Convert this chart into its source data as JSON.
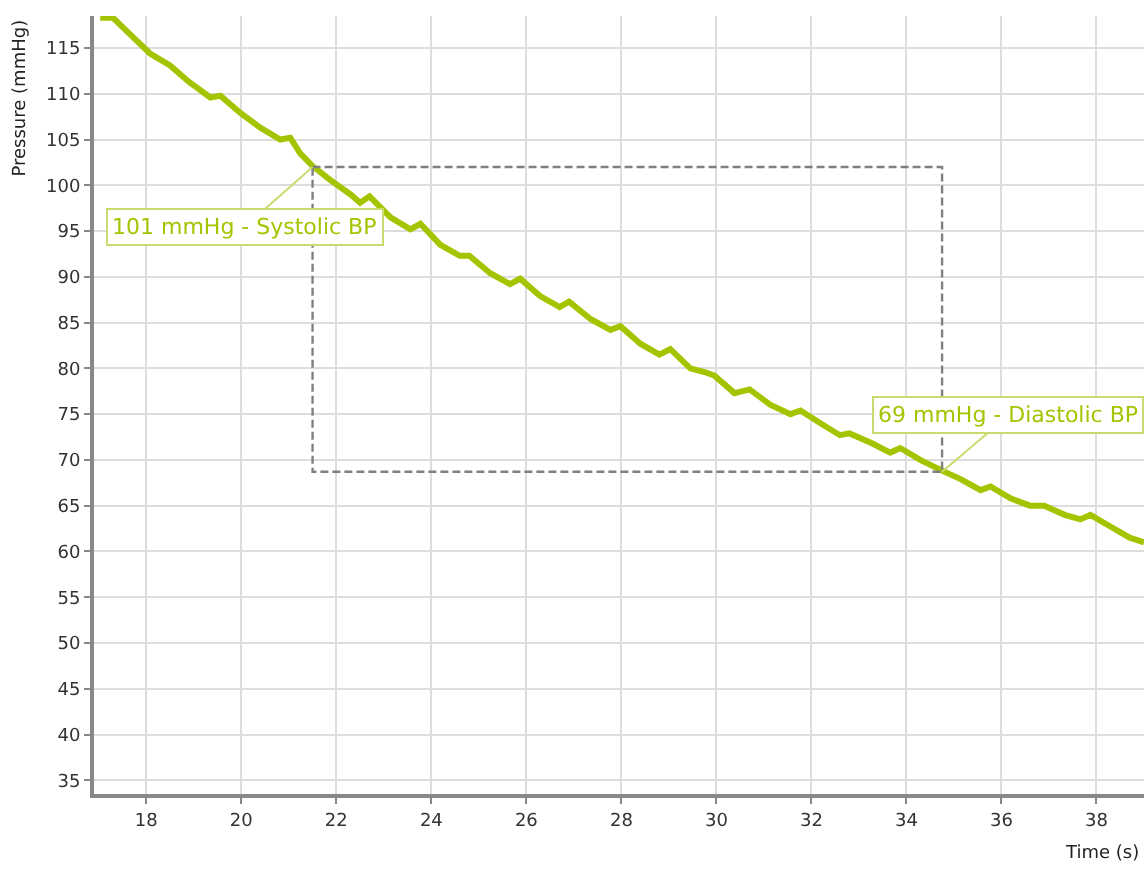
{
  "chart_data": {
    "type": "line",
    "xlabel": "Time (s)",
    "ylabel": "Pressure (mmHg)",
    "xlim": [
      16.9,
      39
    ],
    "xticks": [
      18,
      20,
      22,
      24,
      26,
      28,
      30,
      32,
      34,
      36,
      38
    ],
    "ylim": [
      33.5,
      118.5
    ],
    "yticks": [
      35,
      40,
      45,
      50,
      55,
      60,
      65,
      70,
      75,
      80,
      85,
      90,
      95,
      100,
      105,
      110,
      115
    ],
    "grid": true,
    "marker": "none",
    "series": [
      {
        "color": "#a4c400",
        "line_style": "solid",
        "x": [
          17.03,
          17.3,
          17.66,
          18.08,
          18.5,
          18.9,
          19.35,
          19.56,
          19.98,
          20.4,
          20.82,
          21.03,
          21.24,
          21.5,
          21.87,
          22.3,
          22.5,
          22.7,
          23.14,
          23.56,
          23.77,
          24.19,
          24.6,
          24.8,
          25.24,
          25.66,
          25.87,
          26.29,
          26.7,
          26.9,
          27.35,
          27.77,
          27.98,
          28.4,
          28.8,
          29.03,
          29.45,
          29.75,
          29.96,
          30.38,
          30.7,
          31.14,
          31.56,
          31.77,
          32.19,
          32.6,
          32.8,
          33.24,
          33.66,
          33.87,
          34.29,
          34.76,
          35.14,
          35.56,
          35.77,
          36.19,
          36.6,
          36.9,
          37.33,
          37.66,
          37.87,
          38.3,
          38.7,
          39.0
        ],
        "values": [
          118.3,
          118.3,
          116.5,
          114.4,
          113.1,
          111.3,
          109.6,
          109.8,
          107.9,
          106.3,
          105.0,
          105.2,
          103.5,
          102.1,
          100.6,
          99.0,
          98.1,
          98.8,
          96.5,
          95.2,
          95.8,
          93.5,
          92.3,
          92.3,
          90.4,
          89.2,
          89.8,
          87.9,
          86.7,
          87.3,
          85.4,
          84.2,
          84.6,
          82.7,
          81.5,
          82.1,
          80.0,
          79.6,
          79.2,
          77.3,
          77.7,
          76.0,
          75.0,
          75.4,
          74.0,
          72.7,
          72.9,
          71.9,
          70.8,
          71.3,
          70.0,
          68.8,
          67.9,
          66.7,
          67.1,
          65.8,
          65.0,
          65.0,
          64.0,
          63.5,
          64.0,
          62.7,
          61.5,
          61.0
        ]
      }
    ],
    "annotations": [
      {
        "text": "101 mmHg - Systolic BP",
        "x": 21.5,
        "y": 102
      },
      {
        "text": "69 mmHg - Diastolic BP",
        "x": 34.75,
        "y": 68.7
      }
    ]
  }
}
